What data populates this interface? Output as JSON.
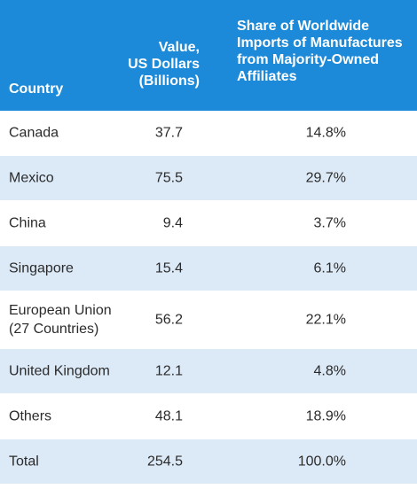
{
  "chart_data": {
    "type": "table",
    "columns": [
      "Country",
      "Value,\nUS Dollars\n(Billions)",
      "Share of Worldwide\nImports of Manufactures\nfrom Majority-Owned\nAffiliates"
    ],
    "rows": [
      {
        "country": "Canada",
        "value": "37.7",
        "share": "14.8%"
      },
      {
        "country": "Mexico",
        "value": "75.5",
        "share": "29.7%"
      },
      {
        "country": "China",
        "value": "9.4",
        "share": "3.7%"
      },
      {
        "country": "Singapore",
        "value": "15.4",
        "share": "6.1%"
      },
      {
        "country": "European Union\n(27 Countries)",
        "value": "56.2",
        "share": "22.1%"
      },
      {
        "country": "United Kingdom",
        "value": "12.1",
        "share": "4.8%"
      },
      {
        "country": "Others",
        "value": "48.1",
        "share": "18.9%"
      },
      {
        "country": "Total",
        "value": "254.5",
        "share": "100.0%"
      }
    ]
  },
  "colors": {
    "header": "#1c8ad8",
    "stripe": "#dce9f7",
    "text": "#2b2b2b"
  }
}
